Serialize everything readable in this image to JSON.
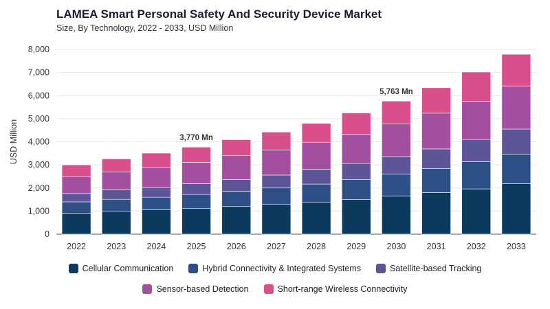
{
  "header": {
    "title": "LAMEA Smart Personal Safety And Security Device Market",
    "subtitle": "Size, By Technology, 2022 - 2033, USD Million"
  },
  "chart_data": {
    "type": "bar",
    "stacked": true,
    "categories": [
      "2022",
      "2023",
      "2024",
      "2025",
      "2026",
      "2027",
      "2028",
      "2029",
      "2030",
      "2031",
      "2032",
      "2033"
    ],
    "ylabel": "USD Million",
    "ylim": [
      0,
      8000
    ],
    "yticks": [
      0,
      1000,
      2000,
      3000,
      4000,
      5000,
      6000,
      7000,
      8000
    ],
    "ytick_labels": [
      "0",
      "1,000",
      "2,000",
      "3,000",
      "4,000",
      "5,000",
      "6,000",
      "7,000",
      "8,000"
    ],
    "grid": true,
    "legend_position": "bottom",
    "series": [
      {
        "name": "Cellular Communication",
        "color": "#0b3a5c",
        "values": [
          910,
          990,
          1060,
          1110,
          1200,
          1300,
          1390,
          1500,
          1650,
          1800,
          1960,
          2190
        ]
      },
      {
        "name": "Hybrid Connectivity & Integrated Systems",
        "color": "#2d4f86",
        "values": [
          490,
          520,
          540,
          610,
          660,
          700,
          780,
          860,
          950,
          1040,
          1180,
          1280
        ]
      },
      {
        "name": "Satellite-based Tracking",
        "color": "#5e5498",
        "values": [
          360,
          410,
          420,
          470,
          500,
          560,
          640,
          700,
          760,
          850,
          960,
          1080
        ]
      },
      {
        "name": "Sensor-based Detection",
        "color": "#a14f9e",
        "values": [
          720,
          780,
          880,
          920,
          1040,
          1090,
          1170,
          1270,
          1410,
          1550,
          1660,
          1870
        ]
      },
      {
        "name": "Short-range Wireless Connectivity",
        "color": "#d94f8c",
        "values": [
          520,
          560,
          610,
          660,
          690,
          770,
          820,
          920,
          993,
          1100,
          1260,
          1370
        ]
      }
    ],
    "annotations": [
      {
        "category": "2025",
        "text": "3,770 Mn"
      },
      {
        "category": "2030",
        "text": "5,763 Mn"
      }
    ]
  }
}
